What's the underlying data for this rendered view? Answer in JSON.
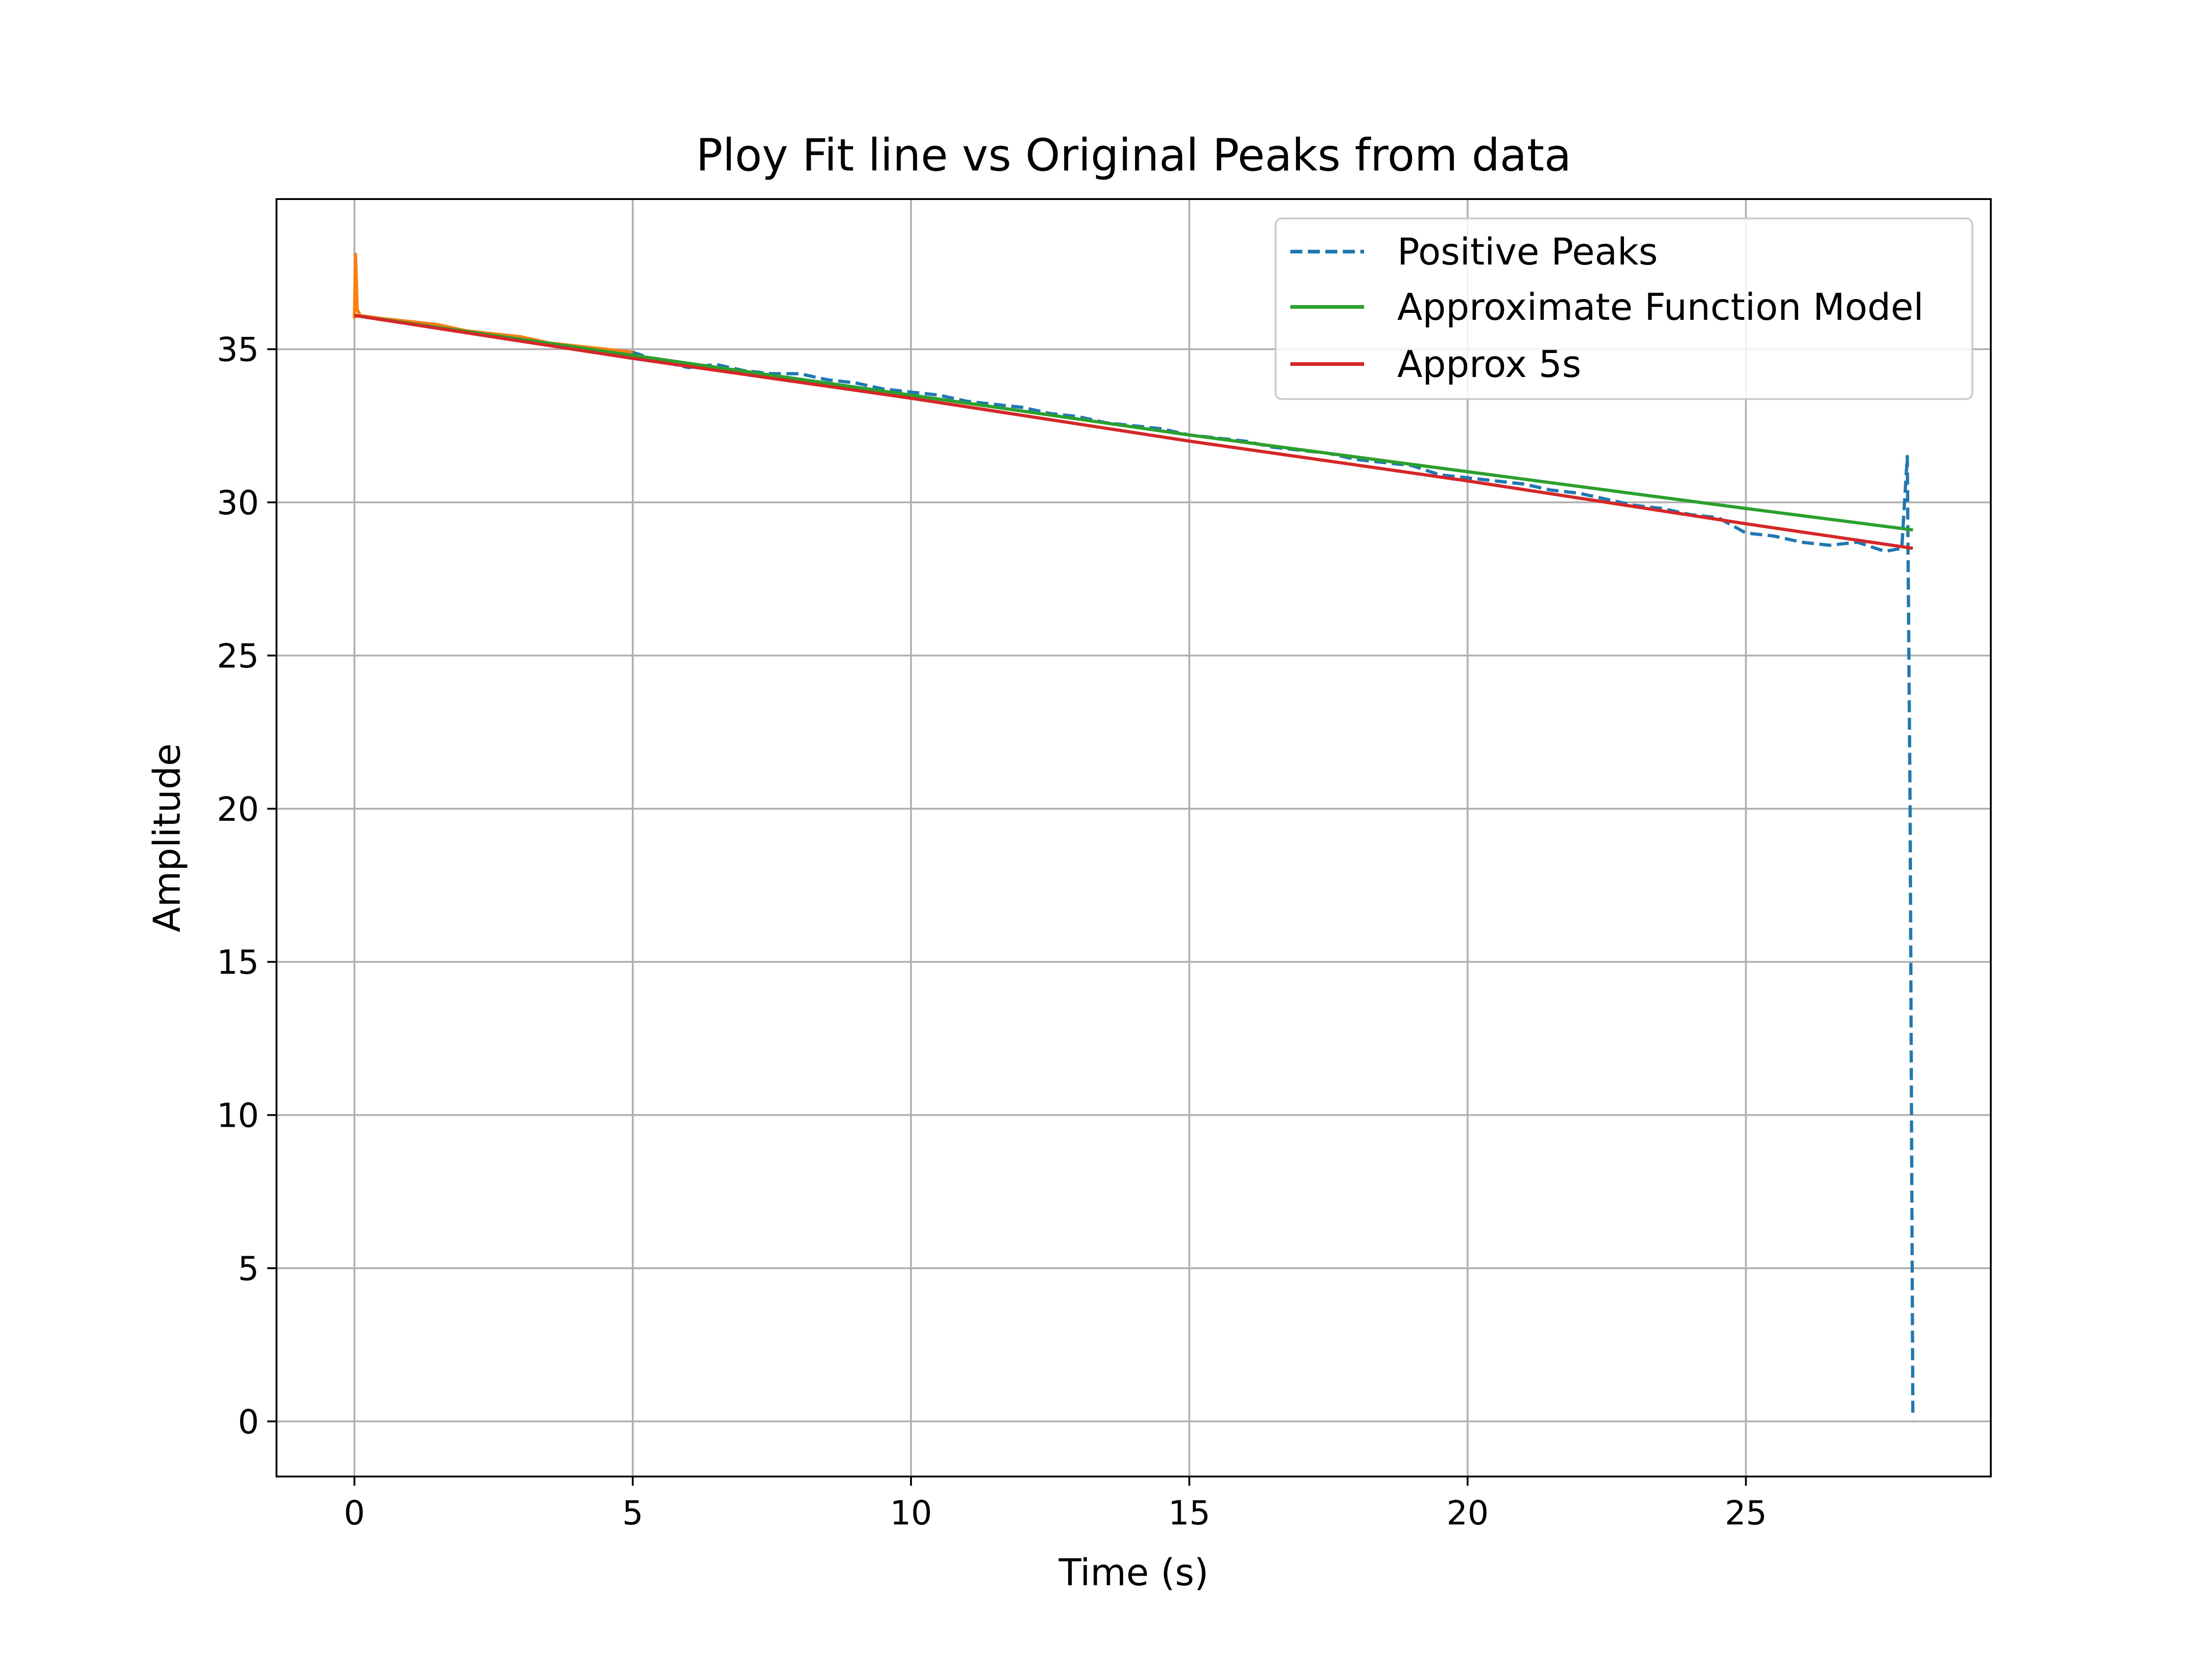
{
  "chart_data": {
    "type": "line",
    "title": "Ploy Fit line vs Original Peaks from data",
    "xlabel": "Time (s)",
    "ylabel": "Amplitude",
    "xlim": [
      -1.4,
      29.4
    ],
    "ylim": [
      -1.8,
      39.9
    ],
    "x_ticks": [
      0,
      5,
      10,
      15,
      20,
      25
    ],
    "y_ticks": [
      0,
      5,
      10,
      15,
      20,
      25,
      30,
      35
    ],
    "grid": true,
    "legend_position": "upper right",
    "series": [
      {
        "name": "Positive Peaks",
        "style": "dashed",
        "color": "#1f77b4",
        "x": [
          0,
          0.5,
          1,
          1.5,
          2,
          2.5,
          3,
          3.5,
          4,
          4.5,
          5,
          5.5,
          6,
          6.5,
          7,
          7.5,
          8,
          8.5,
          9,
          9.5,
          10,
          10.5,
          11,
          11.5,
          12,
          12.5,
          13,
          13.5,
          14,
          14.5,
          15,
          15.5,
          16,
          16.5,
          17,
          17.5,
          18,
          18.5,
          19,
          19.5,
          20,
          20.5,
          21,
          21.5,
          22,
          22.5,
          23,
          23.5,
          24,
          24.5,
          25,
          25.5,
          26,
          26.5,
          27,
          27.5,
          27.8,
          27.9,
          27.95,
          28.0
        ],
        "y": [
          36.1,
          36.0,
          35.9,
          35.8,
          35.6,
          35.5,
          35.4,
          35.2,
          35.1,
          35.0,
          34.9,
          34.6,
          34.4,
          34.5,
          34.3,
          34.2,
          34.2,
          34.0,
          33.9,
          33.7,
          33.6,
          33.5,
          33.3,
          33.2,
          33.1,
          32.9,
          32.8,
          32.6,
          32.5,
          32.4,
          32.2,
          32.1,
          32.0,
          31.8,
          31.7,
          31.6,
          31.4,
          31.3,
          31.2,
          30.9,
          30.8,
          30.7,
          30.6,
          30.4,
          30.3,
          30.1,
          29.9,
          29.8,
          29.6,
          29.5,
          29.0,
          28.9,
          28.7,
          28.6,
          28.7,
          28.4,
          28.5,
          31.5,
          20.0,
          0.1
        ]
      },
      {
        "name": "",
        "style": "solid",
        "color": "#ff7f0e",
        "x": [
          0,
          0.02,
          0.05,
          0.1,
          0.5,
          1,
          1.5,
          2,
          2.5,
          3,
          3.5,
          4,
          4.5,
          5
        ],
        "y": [
          36.0,
          38.1,
          36.3,
          36.1,
          36.0,
          35.9,
          35.8,
          35.6,
          35.5,
          35.4,
          35.2,
          35.1,
          35.0,
          34.9
        ]
      },
      {
        "name": "Approximate Function Model",
        "style": "solid",
        "color": "#2ca02c",
        "x": [
          0,
          5,
          10,
          15,
          20,
          25,
          28
        ],
        "y": [
          36.1,
          34.8,
          33.5,
          32.2,
          31.0,
          29.8,
          29.1
        ]
      },
      {
        "name": "Approx 5s",
        "style": "solid",
        "color": "#d62728",
        "x": [
          0,
          5,
          10,
          15,
          20,
          25,
          28
        ],
        "y": [
          36.1,
          34.7,
          33.4,
          32.0,
          30.7,
          29.3,
          28.5
        ]
      }
    ]
  }
}
